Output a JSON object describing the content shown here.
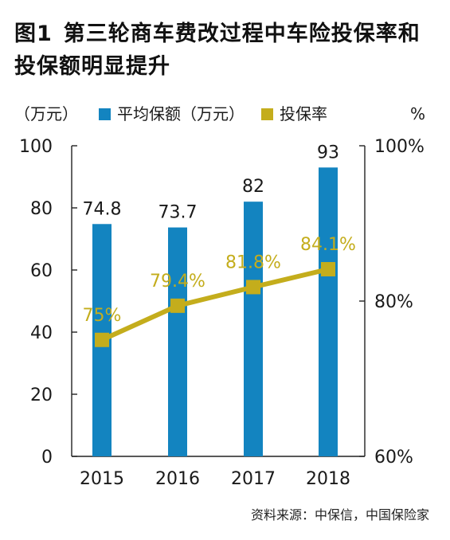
{
  "title": {
    "fig_num": "图1",
    "text": "第三轮商车费改过程中车险投保率和投保额明显提升"
  },
  "legend": {
    "left_unit": "（万元）",
    "bar_label": "平均保额（万元）",
    "line_label": "投保率",
    "right_unit": "%"
  },
  "colors": {
    "bar": "#1384c0",
    "line": "#c4ad1c",
    "axis": "#222222"
  },
  "chart_data": {
    "type": "bar",
    "categories": [
      "2015",
      "2016",
      "2017",
      "2018"
    ],
    "series": [
      {
        "name": "平均保额（万元）",
        "type": "bar",
        "axis": "left",
        "values": [
          74.8,
          73.7,
          82,
          93
        ],
        "labels": [
          "74.8",
          "73.7",
          "82",
          "93"
        ]
      },
      {
        "name": "投保率",
        "type": "line",
        "axis": "right",
        "values": [
          75,
          79.4,
          81.8,
          84.1
        ],
        "labels": [
          "75%",
          "79.4%",
          "81.8%",
          "84.1%"
        ]
      }
    ],
    "y_left": {
      "range": [
        0,
        100
      ],
      "ticks": [
        "0",
        "20",
        "40",
        "60",
        "80",
        "100"
      ]
    },
    "y_right": {
      "range": [
        60,
        100
      ],
      "ticks": [
        "60%",
        "80%",
        "100%"
      ]
    },
    "grid": false
  },
  "source": "资料来源：中保信，中国保险家"
}
